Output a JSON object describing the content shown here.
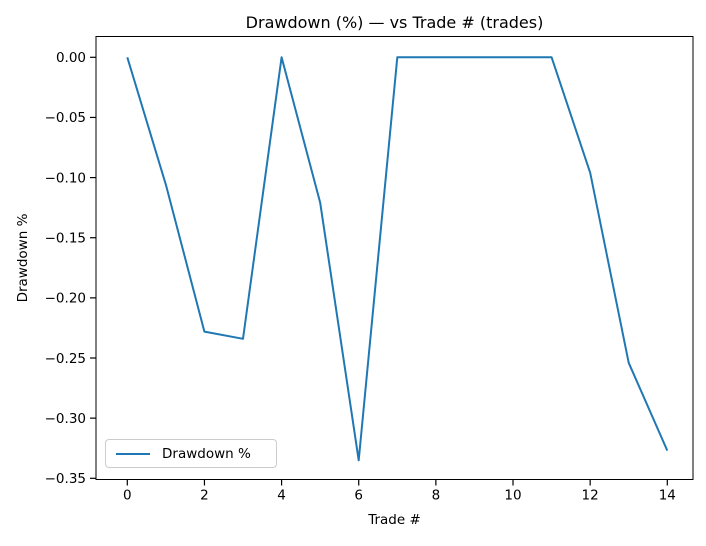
{
  "title": "Drawdown (%) — vs Trade # (trades)",
  "colors": {
    "line": "#1f77b4",
    "background": "#ffffff",
    "spine": "#000000",
    "tick": "#000000",
    "legend_border": "#cccccc"
  },
  "legend": {
    "label": "Drawdown %",
    "position": "lower-left"
  },
  "chart_data": {
    "type": "line",
    "title": "Drawdown (%) — vs Trade # (trades)",
    "xlabel": "Trade #",
    "ylabel": "Drawdown %",
    "x": [
      0,
      1,
      2,
      3,
      4,
      5,
      6,
      7,
      8,
      9,
      10,
      11,
      12,
      13,
      14
    ],
    "series": [
      {
        "name": "Drawdown %",
        "color": "#1f77b4",
        "values": [
          0.0,
          -0.106,
          -0.228,
          -0.234,
          0.0,
          -0.121,
          -0.335,
          0.0,
          0.0,
          0.0,
          0.0,
          0.0,
          -0.096,
          -0.254,
          -0.327
        ]
      }
    ],
    "xlim": [
      -0.8,
      14.7
    ],
    "ylim": [
      -0.351,
      0.017
    ],
    "xticks": [
      0,
      2,
      4,
      6,
      8,
      10,
      12,
      14
    ],
    "xtick_labels": [
      "0",
      "2",
      "4",
      "6",
      "8",
      "10",
      "12",
      "14"
    ],
    "yticks": [
      0.0,
      -0.05,
      -0.1,
      -0.15,
      -0.2,
      -0.25,
      -0.3,
      -0.35
    ],
    "ytick_labels": [
      "0.00",
      "−0.05",
      "−0.10",
      "−0.15",
      "−0.20",
      "−0.25",
      "−0.30",
      "−0.35"
    ],
    "grid": false,
    "legend_position": "lower-left"
  }
}
